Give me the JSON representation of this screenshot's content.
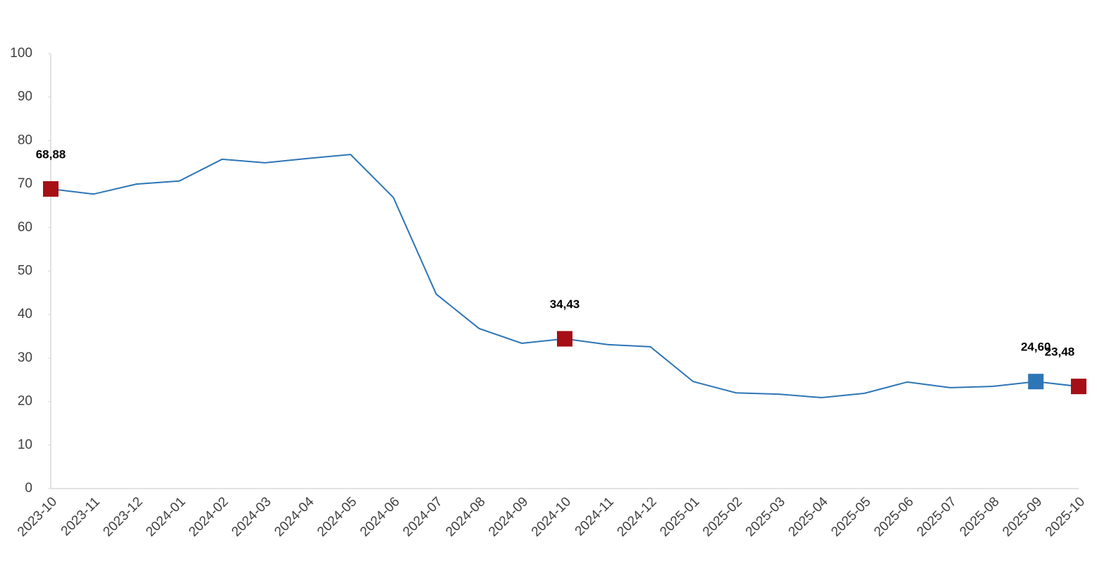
{
  "chart_data": {
    "type": "line",
    "categories": [
      "2023-10",
      "2023-11",
      "2023-12",
      "2024-01",
      "2024-02",
      "2024-03",
      "2024-04",
      "2024-05",
      "2024-06",
      "2024-07",
      "2024-08",
      "2024-09",
      "2024-10",
      "2024-11",
      "2024-12",
      "2025-01",
      "2025-02",
      "2025-03",
      "2025-04",
      "2025-05",
      "2025-06",
      "2025-07",
      "2025-08",
      "2025-09",
      "2025-10"
    ],
    "series": [
      {
        "color": "#2e75b6",
        "values": [
          68.88,
          67.7,
          70.0,
          70.7,
          75.7,
          74.9,
          75.9,
          76.8,
          66.9,
          44.7,
          36.8,
          33.4,
          34.43,
          33.1,
          32.6,
          24.6,
          22.0,
          21.7,
          20.9,
          21.9,
          24.5,
          23.2,
          23.5,
          24.6,
          23.48
        ],
        "value_labels": [
          "68,88",
          null,
          null,
          null,
          null,
          null,
          null,
          null,
          null,
          null,
          null,
          null,
          "34,43",
          null,
          null,
          null,
          null,
          null,
          null,
          null,
          null,
          null,
          null,
          "24,60",
          "23,48"
        ],
        "marker_colors": [
          "#a50f15",
          null,
          null,
          null,
          null,
          null,
          null,
          null,
          null,
          null,
          null,
          null,
          "#a50f15",
          null,
          null,
          null,
          null,
          null,
          null,
          null,
          null,
          null,
          null,
          "#2e75b6",
          "#a50f15"
        ]
      }
    ],
    "ylim": [
      0,
      100
    ],
    "yticks": [
      0,
      10,
      20,
      30,
      40,
      50,
      60,
      70,
      80,
      90,
      100
    ],
    "grid": false
  }
}
